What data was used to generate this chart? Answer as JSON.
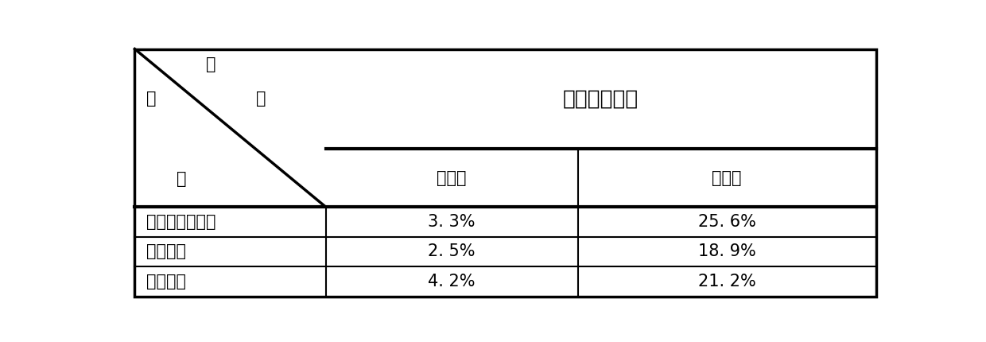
{
  "title_merged": "菌落残留面积",
  "header_row_label1": "结",
  "header_row_label2": "果",
  "header_col_label1": "菌",
  "header_col_label2": "种",
  "col1_header": "实验组",
  "col2_header": "对照组",
  "rows": [
    {
      "label": "金黄色葡萄球菌",
      "col1": "3. 3%",
      "col2": "25. 6%",
      "bold": true
    },
    {
      "label": "绿脆杆菌",
      "col1": "2. 5%",
      "col2": "18. 9%",
      "bold": true
    },
    {
      "label": "白喉杆菌",
      "col1": "4. 2%",
      "col2": "21. 2%",
      "bold": true
    }
  ],
  "outer_border_lw": 2.5,
  "inner_border_lw": 1.5,
  "thick_border_lw": 3.0,
  "bg_color": "#ffffff",
  "text_color": "#000000"
}
